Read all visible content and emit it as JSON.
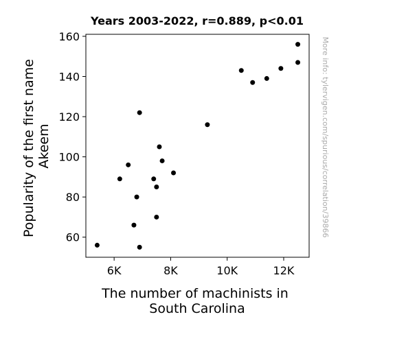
{
  "chart_data": {
    "type": "scatter",
    "title": "Years 2003-2022, r=0.889, p<0.01",
    "xlabel_lines": [
      "The number of machinists in",
      "South Carolina"
    ],
    "ylabel_lines": [
      "Popularity of the first name",
      "Akeem"
    ],
    "watermark": "More info: tylervigen.com/spurious/correlation/39866",
    "xlim": [
      5000,
      12900
    ],
    "ylim": [
      50,
      161
    ],
    "x_ticks": [
      {
        "value": 6000,
        "label": "6K"
      },
      {
        "value": 8000,
        "label": "8K"
      },
      {
        "value": 10000,
        "label": "10K"
      },
      {
        "value": 12000,
        "label": "12K"
      }
    ],
    "y_ticks": [
      {
        "value": 60,
        "label": "60"
      },
      {
        "value": 80,
        "label": "80"
      },
      {
        "value": 100,
        "label": "100"
      },
      {
        "value": 120,
        "label": "120"
      },
      {
        "value": 140,
        "label": "140"
      },
      {
        "value": 160,
        "label": "160"
      }
    ],
    "point_color": "#000000",
    "points": [
      {
        "x": 5400,
        "y": 56
      },
      {
        "x": 6200,
        "y": 89
      },
      {
        "x": 6500,
        "y": 96
      },
      {
        "x": 6700,
        "y": 66
      },
      {
        "x": 6800,
        "y": 80
      },
      {
        "x": 6900,
        "y": 122
      },
      {
        "x": 6900,
        "y": 55
      },
      {
        "x": 7400,
        "y": 89
      },
      {
        "x": 7500,
        "y": 85
      },
      {
        "x": 7500,
        "y": 70
      },
      {
        "x": 7600,
        "y": 105
      },
      {
        "x": 7700,
        "y": 98
      },
      {
        "x": 8100,
        "y": 92
      },
      {
        "x": 9300,
        "y": 116
      },
      {
        "x": 10500,
        "y": 143
      },
      {
        "x": 10900,
        "y": 137
      },
      {
        "x": 11400,
        "y": 139
      },
      {
        "x": 11900,
        "y": 144
      },
      {
        "x": 12500,
        "y": 156
      },
      {
        "x": 12500,
        "y": 147
      }
    ]
  }
}
